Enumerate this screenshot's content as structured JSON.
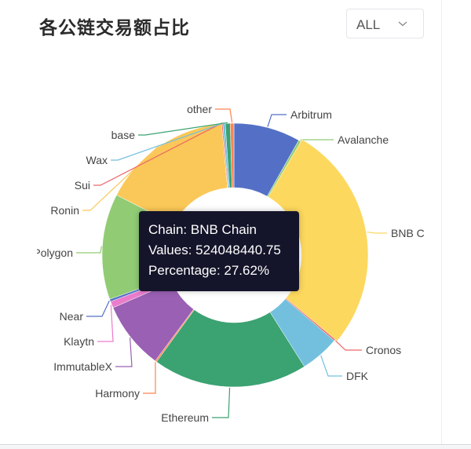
{
  "card": {
    "title": "各公链交易额占比",
    "filter": {
      "selected": "ALL",
      "icon": "chevron-down-icon"
    }
  },
  "tooltip": {
    "line1": "Chain: BNB Chain",
    "line2": "Values: 524048440.75",
    "line3": "Percentage: 27.62%"
  },
  "chart_data": {
    "type": "pie",
    "variant": "donut",
    "highlighted": "BNB Chain",
    "unit": "percent",
    "slices": [
      {
        "name": "Arbitrum",
        "value": 8.2,
        "color": "#5470c6"
      },
      {
        "name": "Avalanche",
        "value": 0.3,
        "color": "#91cc75"
      },
      {
        "name": "BNB Chain",
        "value": 27.62,
        "color": "#fdd85e"
      },
      {
        "name": "Cronos",
        "value": 0.2,
        "color": "#ee6666"
      },
      {
        "name": "DFK",
        "value": 4.8,
        "color": "#73c0de"
      },
      {
        "name": "Ethereum",
        "value": 19.0,
        "color": "#3ba272"
      },
      {
        "name": "Harmony",
        "value": 0.2,
        "color": "#fc8452"
      },
      {
        "name": "ImmutableX",
        "value": 8.3,
        "color": "#9a60b4"
      },
      {
        "name": "Klaytn",
        "value": 0.8,
        "color": "#ea7ccc"
      },
      {
        "name": "Near",
        "value": 0.3,
        "color": "#5470c6"
      },
      {
        "name": "Polygon",
        "value": 13.0,
        "color": "#91cc75"
      },
      {
        "name": "Ronin",
        "value": 16.0,
        "color": "#fac858"
      },
      {
        "name": "Sui",
        "value": 0.15,
        "color": "#ee6666"
      },
      {
        "name": "Wax",
        "value": 0.3,
        "color": "#73c0de"
      },
      {
        "name": "base",
        "value": 0.6,
        "color": "#3ba272"
      },
      {
        "name": "other",
        "value": 0.45,
        "color": "#fc8452"
      }
    ]
  }
}
